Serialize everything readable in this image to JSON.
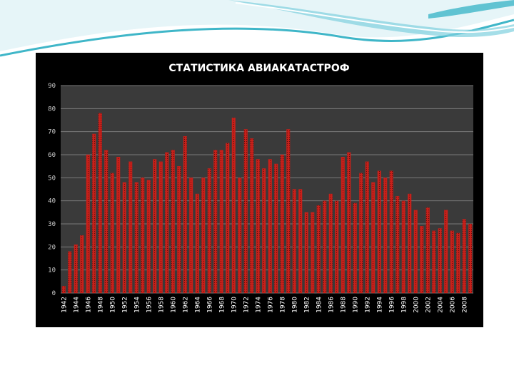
{
  "colors": {
    "panel": "#000000",
    "plot_area": "#3a3a3a",
    "grid": "#7a7a7a",
    "bar": "#c8201a",
    "bar_dots": "#5a0a08",
    "title": "#ffffff",
    "decor_teal": "#3fb6c8",
    "decor_light": "#bfe6ee"
  },
  "chart_data": {
    "type": "bar",
    "title": "СТАТИСТИКА АВИАКАТАСТРОФ",
    "xlabel": "",
    "ylabel": "",
    "ylim": [
      0,
      90
    ],
    "yticks": [
      0,
      10,
      20,
      30,
      40,
      50,
      60,
      70,
      80,
      90
    ],
    "grid": true,
    "legend": "none",
    "categories": [
      "1942",
      "1943",
      "1944",
      "1945",
      "1946",
      "1947",
      "1948",
      "1949",
      "1950",
      "1951",
      "1952",
      "1953",
      "1954",
      "1955",
      "1956",
      "1957",
      "1958",
      "1959",
      "1960",
      "1961",
      "1962",
      "1963",
      "1964",
      "1965",
      "1966",
      "1967",
      "1968",
      "1969",
      "1970",
      "1971",
      "1972",
      "1973",
      "1974",
      "1975",
      "1976",
      "1977",
      "1978",
      "1979",
      "1980",
      "1981",
      "1982",
      "1983",
      "1984",
      "1985",
      "1986",
      "1987",
      "1988",
      "1989",
      "1990",
      "1991",
      "1992",
      "1993",
      "1994",
      "1995",
      "1996",
      "1997",
      "1998",
      "1999",
      "2000",
      "2001",
      "2002",
      "2003",
      "2004",
      "2005",
      "2006",
      "2007",
      "2008",
      "2009"
    ],
    "x_tick_labels": [
      "1942",
      "1944",
      "1946",
      "1948",
      "1950",
      "1952",
      "1954",
      "1956",
      "1958",
      "1960",
      "1962",
      "1964",
      "1966",
      "1968",
      "1970",
      "1972",
      "1974",
      "1976",
      "1978",
      "1980",
      "1982",
      "1984",
      "1986",
      "1988",
      "1990",
      "1992",
      "1994",
      "1996",
      "1998",
      "2000",
      "2002",
      "2004",
      "2006",
      "2008"
    ],
    "values": [
      3,
      18,
      21,
      25,
      60,
      69,
      78,
      62,
      52,
      59,
      48,
      57,
      48,
      50,
      49,
      58,
      57,
      61,
      62,
      55,
      68,
      50,
      43,
      50,
      54,
      62,
      62,
      65,
      76,
      50,
      71,
      67,
      58,
      54,
      58,
      56,
      60,
      71,
      45,
      45,
      35,
      35,
      38,
      40,
      43,
      40,
      59,
      61,
      39,
      52,
      57,
      48,
      53,
      50,
      53,
      42,
      40,
      43,
      36,
      29,
      37,
      27,
      28,
      36,
      27,
      26,
      32,
      30
    ]
  }
}
